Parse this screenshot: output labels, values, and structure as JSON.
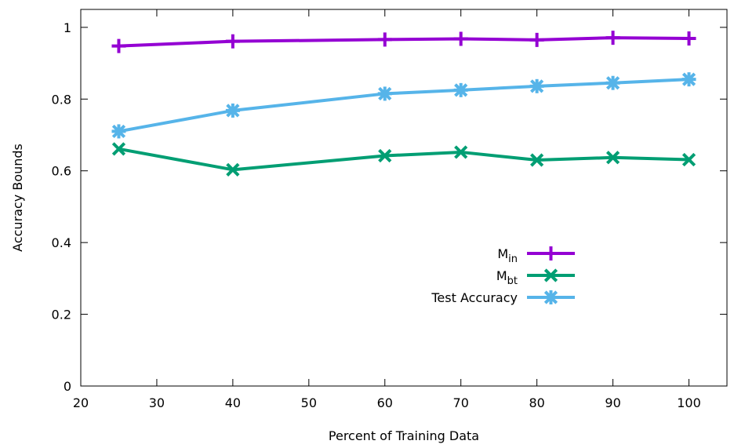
{
  "chart_data": {
    "type": "line",
    "xlabel": "Percent of Training Data",
    "ylabel": "Accuracy Bounds",
    "xlim": [
      20,
      105
    ],
    "ylim": [
      0,
      1.05
    ],
    "xticks": [
      20,
      30,
      40,
      50,
      60,
      70,
      80,
      90,
      100
    ],
    "yticks": [
      0,
      0.2,
      0.4,
      0.6,
      0.8,
      1
    ],
    "x": [
      25,
      40,
      60,
      70,
      80,
      90,
      100
    ],
    "legend_position": "center-right",
    "series": [
      {
        "name": "M",
        "subscript": "in",
        "color": "#9400d3",
        "marker": "plus",
        "values": [
          0.948,
          0.961,
          0.966,
          0.968,
          0.965,
          0.971,
          0.969
        ]
      },
      {
        "name": "M",
        "subscript": "bt",
        "color": "#009e73",
        "marker": "cross",
        "values": [
          0.661,
          0.603,
          0.642,
          0.652,
          0.63,
          0.637,
          0.631
        ]
      },
      {
        "name": "Test Accuracy",
        "subscript": "",
        "color": "#56b4e9",
        "marker": "star",
        "values": [
          0.71,
          0.768,
          0.815,
          0.825,
          0.836,
          0.845,
          0.855
        ]
      }
    ]
  }
}
